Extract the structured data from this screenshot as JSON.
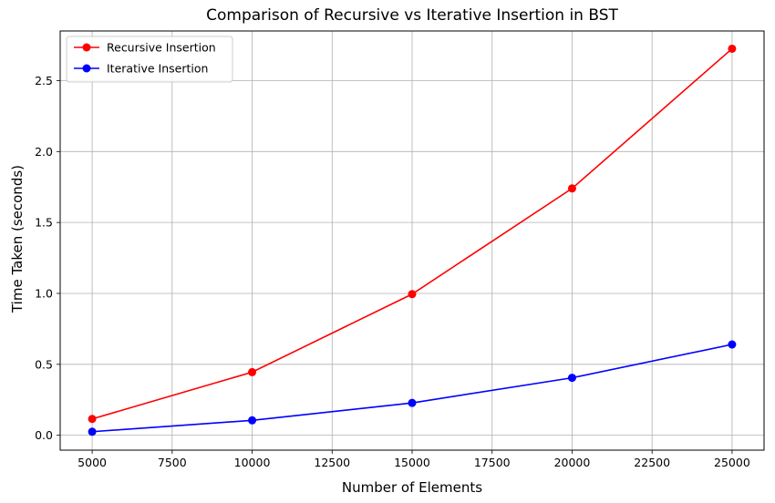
{
  "chart_data": {
    "type": "line",
    "title": "Comparison of Recursive vs Iterative Insertion in BST",
    "xlabel": "Number of Elements",
    "ylabel": "Time Taken (seconds)",
    "x": [
      5000,
      10000,
      15000,
      20000,
      25000
    ],
    "xlim": [
      4000,
      26000
    ],
    "ylim": [
      -0.105,
      2.85
    ],
    "x_ticks": [
      5000,
      7500,
      10000,
      12500,
      15000,
      17500,
      20000,
      22500,
      25000
    ],
    "y_ticks": [
      0.0,
      0.5,
      1.0,
      1.5,
      2.0,
      2.5
    ],
    "x_tick_labels": [
      "5000",
      "7500",
      "10000",
      "12500",
      "15000",
      "17500",
      "20000",
      "22500",
      "25000"
    ],
    "y_tick_labels": [
      "0.0",
      "0.5",
      "1.0",
      "1.5",
      "2.0",
      "2.5"
    ],
    "grid": true,
    "legend_position": "top-left",
    "series": [
      {
        "name": "Recursive Insertion",
        "color": "#ff0000",
        "values": [
          0.115,
          0.445,
          0.995,
          1.74,
          2.725
        ]
      },
      {
        "name": "Iterative Insertion",
        "color": "#0000ff",
        "values": [
          0.025,
          0.105,
          0.228,
          0.405,
          0.64
        ]
      }
    ]
  }
}
